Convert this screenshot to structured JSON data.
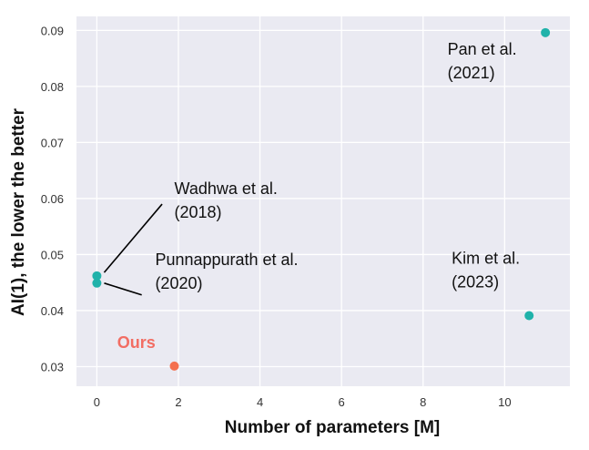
{
  "chart_data": {
    "type": "scatter",
    "xlabel": "Number of parameters [M]",
    "ylabel": "AI(1), the lower the better",
    "xlim": [
      -0.5,
      11.6
    ],
    "ylim": [
      0.0265,
      0.0925
    ],
    "xticks": [
      0,
      2,
      4,
      6,
      8,
      10
    ],
    "yticks": [
      0.03,
      0.04,
      0.05,
      0.06,
      0.07,
      0.08,
      0.09
    ],
    "grid": true,
    "points": [
      {
        "x": 0.0,
        "y": 0.0462,
        "color": "#20b2aa"
      },
      {
        "x": 0.0,
        "y": 0.0449,
        "color": "#20b2aa"
      },
      {
        "x": 1.9,
        "y": 0.0301,
        "color": "#f4704f"
      },
      {
        "x": 10.6,
        "y": 0.0391,
        "color": "#20b2aa"
      },
      {
        "x": 11.0,
        "y": 0.0896,
        "color": "#20b2aa"
      }
    ],
    "annotations": [
      {
        "lines": [
          "Wadhwa et al.",
          "(2018)"
        ],
        "tx": 1.9,
        "ty": 0.0608,
        "arrow_from": [
          1.6,
          0.059
        ],
        "arrow_to": [
          0.18,
          0.0468
        ]
      },
      {
        "lines": [
          "Punnappurath  et al.",
          "(2020)"
        ],
        "tx": 1.43,
        "ty": 0.0481,
        "arrow_from": [
          1.1,
          0.0428
        ],
        "arrow_to": [
          0.18,
          0.0449
        ]
      },
      {
        "lines": [
          "Ours"
        ],
        "tx": 0.5,
        "ty": 0.0333,
        "highlight": true,
        "color": "#f26d63"
      },
      {
        "lines": [
          "Kim et al.",
          "(2023)"
        ],
        "tx": 8.7,
        "ty": 0.0484
      },
      {
        "lines": [
          "Pan et al.",
          "(2021)"
        ],
        "tx": 8.6,
        "ty": 0.0857
      }
    ],
    "colors": {
      "background": "#eaeaf2",
      "grid": "#ffffff",
      "teal": "#20b2aa",
      "orange": "#f4704f",
      "ours_label": "#f26d63"
    }
  }
}
